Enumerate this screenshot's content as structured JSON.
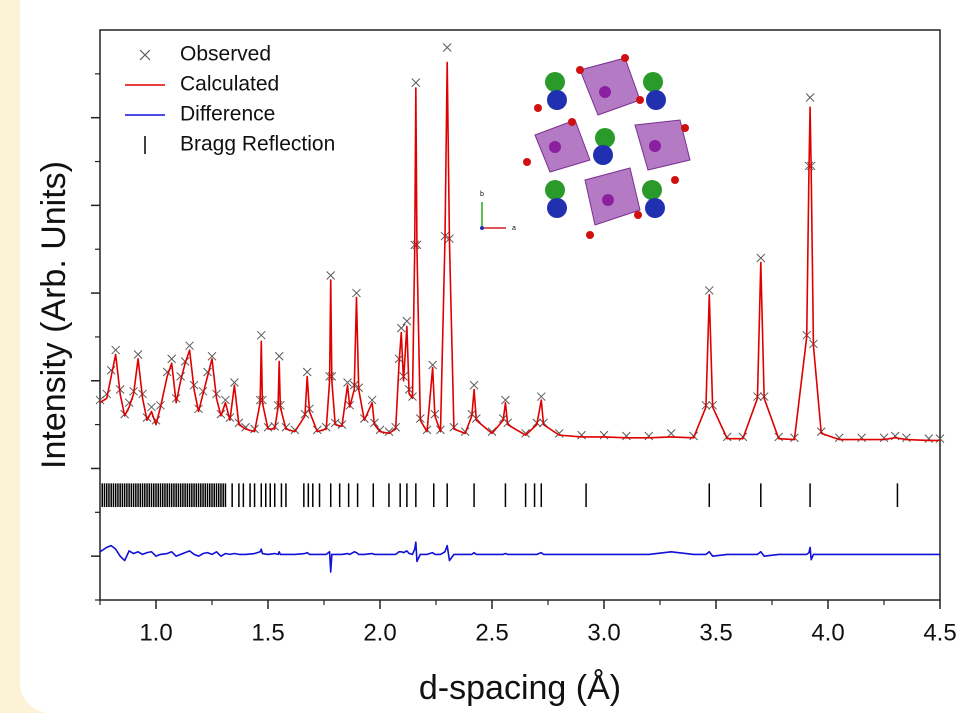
{
  "chart_data": {
    "type": "line",
    "x_label": "d-spacing (Å)",
    "y_label": "Intensity (Arb. Units)",
    "xlim": [
      0.75,
      4.5
    ],
    "xticks": [
      {
        "value": 1,
        "label": "1.0"
      },
      1.5,
      {
        "value": 2,
        "label": "2.0"
      },
      2.5,
      {
        "value": 3,
        "label": "3.0"
      },
      3.5,
      {
        "value": 4,
        "label": "4.0"
      },
      4.5
    ],
    "xminorticks": [
      0.75,
      1.25,
      1.75,
      2.25,
      2.75,
      3.25,
      3.75,
      4.25
    ],
    "ylim": [
      -0.5,
      6
    ],
    "yticks": [
      0,
      1,
      2,
      3,
      4,
      5
    ],
    "yminorticks": [
      -0.5,
      0.5,
      1.5,
      2.5,
      3.5,
      4.5,
      5.5
    ],
    "legend": "upper left",
    "x": [
      0.75,
      0.78,
      0.8,
      0.82,
      0.84,
      0.86,
      0.88,
      0.9,
      0.92,
      0.94,
      0.96,
      0.98,
      1.0,
      1.02,
      1.05,
      1.07,
      1.09,
      1.11,
      1.13,
      1.15,
      1.17,
      1.19,
      1.21,
      1.23,
      1.25,
      1.27,
      1.29,
      1.31,
      1.33,
      1.35,
      1.37,
      1.4,
      1.44,
      1.465,
      1.47,
      1.475,
      1.5,
      1.53,
      1.545,
      1.55,
      1.555,
      1.58,
      1.62,
      1.665,
      1.675,
      1.685,
      1.72,
      1.76,
      1.775,
      1.78,
      1.785,
      1.8,
      1.83,
      1.855,
      1.865,
      1.885,
      1.895,
      1.905,
      1.93,
      1.965,
      1.975,
      2.0,
      2.04,
      2.07,
      2.085,
      2.095,
      2.105,
      2.12,
      2.13,
      2.145,
      2.155,
      2.16,
      2.165,
      2.18,
      2.21,
      2.235,
      2.245,
      2.27,
      2.29,
      2.3,
      2.31,
      2.33,
      2.38,
      2.41,
      2.42,
      2.43,
      2.5,
      2.55,
      2.56,
      2.57,
      2.65,
      2.7,
      2.72,
      2.73,
      2.8,
      2.9,
      3.0,
      3.1,
      3.2,
      3.3,
      3.4,
      3.455,
      3.47,
      3.485,
      3.55,
      3.62,
      3.685,
      3.7,
      3.715,
      3.78,
      3.85,
      3.905,
      3.915,
      3.92,
      3.925,
      3.935,
      3.97,
      4.05,
      4.15,
      4.25,
      4.3,
      4.35,
      4.45,
      4.5
    ],
    "series": [
      {
        "name": "Observed",
        "mode": "markers",
        "color": "#5a5a5a",
        "values": [
          1.78,
          1.85,
          2.12,
          2.35,
          1.9,
          1.62,
          1.75,
          1.88,
          2.3,
          1.85,
          1.58,
          1.7,
          1.55,
          1.72,
          2.1,
          2.25,
          1.8,
          2.05,
          2.22,
          2.4,
          1.95,
          1.68,
          1.88,
          2.1,
          2.28,
          1.85,
          1.62,
          1.78,
          1.58,
          1.98,
          1.52,
          1.47,
          1.45,
          1.78,
          2.52,
          1.78,
          1.47,
          1.48,
          1.72,
          2.28,
          1.72,
          1.47,
          1.44,
          1.62,
          2.1,
          1.68,
          1.44,
          1.47,
          2.05,
          3.2,
          2.05,
          1.52,
          1.5,
          1.98,
          1.72,
          1.95,
          3.0,
          1.92,
          1.57,
          1.78,
          1.52,
          1.44,
          1.42,
          1.47,
          2.25,
          2.6,
          2.05,
          2.68,
          1.9,
          1.82,
          3.55,
          5.4,
          3.55,
          1.57,
          1.44,
          2.18,
          1.62,
          1.44,
          3.65,
          5.8,
          3.62,
          1.47,
          1.42,
          1.62,
          1.95,
          1.57,
          1.42,
          1.57,
          1.78,
          1.52,
          1.4,
          1.52,
          1.82,
          1.52,
          1.4,
          1.38,
          1.38,
          1.37,
          1.37,
          1.4,
          1.37,
          1.72,
          3.03,
          1.72,
          1.36,
          1.36,
          1.82,
          3.4,
          1.82,
          1.36,
          1.35,
          2.52,
          4.45,
          5.23,
          4.45,
          2.42,
          1.42,
          1.35,
          1.35,
          1.35,
          1.37,
          1.35,
          1.34,
          1.34
        ]
      },
      {
        "name": "Calculated",
        "mode": "line",
        "color": "#e00000",
        "values": [
          1.75,
          1.8,
          2.05,
          2.3,
          1.85,
          1.6,
          1.7,
          1.85,
          2.25,
          1.8,
          1.55,
          1.65,
          1.5,
          1.7,
          2.05,
          2.2,
          1.75,
          2.0,
          2.2,
          2.35,
          1.9,
          1.65,
          1.85,
          2.05,
          2.25,
          1.8,
          1.6,
          1.75,
          1.55,
          1.95,
          1.5,
          1.45,
          1.42,
          1.75,
          2.45,
          1.75,
          1.45,
          1.45,
          1.7,
          2.22,
          1.7,
          1.45,
          1.42,
          1.6,
          2.05,
          1.65,
          1.42,
          1.45,
          2.0,
          3.15,
          2.0,
          1.5,
          1.48,
          1.95,
          1.7,
          1.9,
          2.95,
          1.9,
          1.55,
          1.75,
          1.5,
          1.42,
          1.4,
          1.45,
          2.2,
          2.55,
          2.0,
          2.62,
          1.85,
          1.8,
          3.5,
          5.34,
          3.5,
          1.55,
          1.42,
          2.15,
          1.6,
          1.42,
          3.6,
          5.63,
          3.6,
          1.45,
          1.4,
          1.6,
          1.9,
          1.55,
          1.4,
          1.55,
          1.75,
          1.5,
          1.38,
          1.5,
          1.78,
          1.5,
          1.38,
          1.36,
          1.36,
          1.35,
          1.35,
          1.36,
          1.35,
          1.7,
          2.98,
          1.7,
          1.34,
          1.34,
          1.8,
          3.35,
          1.8,
          1.34,
          1.33,
          2.5,
          4.4,
          5.12,
          4.4,
          2.4,
          1.4,
          1.33,
          1.33,
          1.33,
          1.35,
          1.33,
          1.32,
          1.32
        ]
      },
      {
        "name": "Difference",
        "mode": "line",
        "color": "#1010d8",
        "values": [
          0.05,
          0.1,
          0.12,
          0.08,
          0.0,
          -0.05,
          0.06,
          0.03,
          0.05,
          0.02,
          0.04,
          0.05,
          0.0,
          0.02,
          0.03,
          0.05,
          0.0,
          0.02,
          0.04,
          0.06,
          0.02,
          0.0,
          0.03,
          0.04,
          0.02,
          0.05,
          0.0,
          0.03,
          0.02,
          0.03,
          0.02,
          0.02,
          0.03,
          0.05,
          0.08,
          0.03,
          0.02,
          0.03,
          0.02,
          0.05,
          0.02,
          0.02,
          0.02,
          0.03,
          0.04,
          0.02,
          0.02,
          0.02,
          0.05,
          -0.18,
          0.02,
          0.02,
          0.02,
          0.03,
          0.02,
          0.05,
          0.04,
          0.02,
          0.02,
          0.03,
          0.02,
          0.02,
          0.02,
          0.02,
          0.05,
          0.05,
          0.04,
          0.06,
          0.03,
          0.02,
          0.08,
          0.16,
          -0.06,
          0.02,
          0.02,
          0.04,
          0.02,
          0.02,
          0.05,
          0.12,
          -0.05,
          0.02,
          0.02,
          0.02,
          0.04,
          0.02,
          0.02,
          0.02,
          0.03,
          0.02,
          0.02,
          0.02,
          0.04,
          0.02,
          0.02,
          0.02,
          0.02,
          0.02,
          0.02,
          0.05,
          0.02,
          0.02,
          0.05,
          0.0,
          0.02,
          0.02,
          0.02,
          0.05,
          0.0,
          0.02,
          0.02,
          0.02,
          0.04,
          0.1,
          -0.04,
          0.02,
          0.02,
          0.02,
          0.02,
          0.02,
          0.02,
          0.02,
          0.02,
          0.02
        ]
      }
    ],
    "bragg": {
      "name": "Bragg Reflection",
      "color": "#000000",
      "y_range": [
        0.56,
        0.83
      ],
      "positions": [
        0.76,
        0.77,
        0.78,
        0.79,
        0.8,
        0.81,
        0.82,
        0.83,
        0.84,
        0.85,
        0.86,
        0.87,
        0.88,
        0.89,
        0.9,
        0.91,
        0.92,
        0.93,
        0.94,
        0.95,
        0.96,
        0.97,
        0.98,
        0.99,
        1.0,
        1.01,
        1.02,
        1.03,
        1.04,
        1.05,
        1.06,
        1.07,
        1.08,
        1.09,
        1.1,
        1.11,
        1.12,
        1.13,
        1.14,
        1.15,
        1.16,
        1.17,
        1.18,
        1.19,
        1.2,
        1.21,
        1.22,
        1.23,
        1.24,
        1.25,
        1.26,
        1.27,
        1.28,
        1.29,
        1.3,
        1.31,
        1.34,
        1.37,
        1.39,
        1.42,
        1.44,
        1.47,
        1.49,
        1.51,
        1.53,
        1.56,
        1.58,
        1.66,
        1.68,
        1.7,
        1.73,
        1.78,
        1.82,
        1.86,
        1.9,
        1.97,
        2.04,
        2.09,
        2.12,
        2.16,
        2.24,
        2.3,
        2.42,
        2.56,
        2.65,
        2.69,
        2.72,
        2.92,
        3.47,
        3.7,
        3.92,
        4.31
      ]
    },
    "inset": {
      "vertical_axis": "b",
      "horizontal_axis": "a"
    }
  }
}
